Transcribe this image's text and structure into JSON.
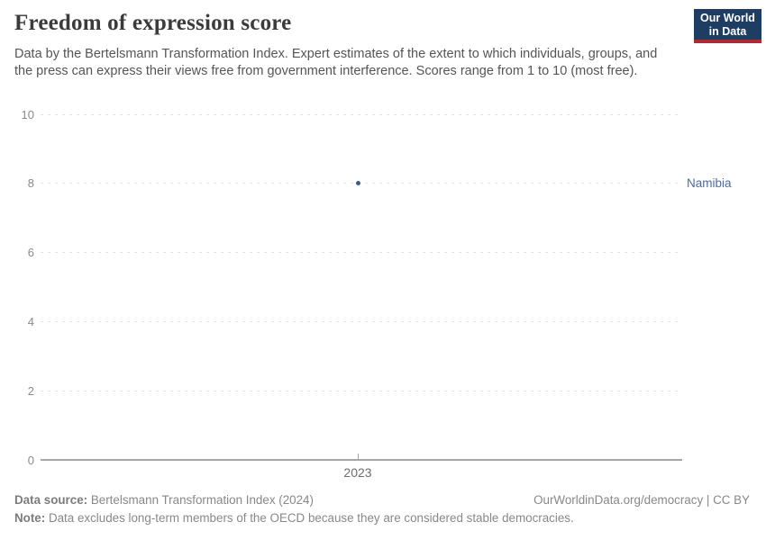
{
  "header": {
    "title": "Freedom of expression score",
    "subtitle": "Data by the Bertelsmann Transformation Index. Expert estimates of the extent to which individuals, groups, and the press can express their views free from government interference. Scores range from 1 to 10 (most free).",
    "logo": {
      "line1": "Our World",
      "line2": "in Data",
      "bg_color": "#1d3d63",
      "bar_color": "#b0293a"
    }
  },
  "chart_data": {
    "type": "scatter",
    "title": "Freedom of expression score",
    "xlabel": "",
    "ylabel": "",
    "ylim": [
      0,
      10
    ],
    "yticks": [
      0,
      2,
      4,
      6,
      8,
      10
    ],
    "xticks": [
      "2023"
    ],
    "grid": true,
    "legend_position": "entity label at right of plot",
    "series": [
      {
        "name": "Namibia",
        "points": [
          {
            "x": 2023,
            "y": 8
          }
        ],
        "point_color": "#3a5c95",
        "label_color": "#4d6aa0"
      }
    ]
  },
  "footer": {
    "source_label": "Data source:",
    "source_text": " Bertelsmann Transformation Index (2024)",
    "rights": "OurWorldinData.org/democracy | CC BY",
    "note_label": "Note:",
    "note_text": " Data excludes long-term members of the OECD because they are considered stable democracies."
  }
}
